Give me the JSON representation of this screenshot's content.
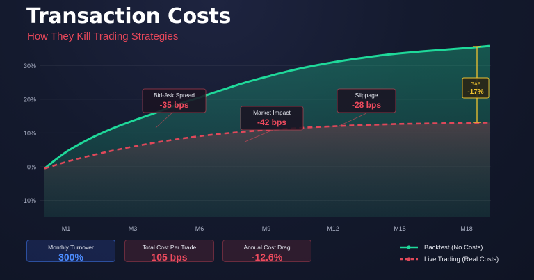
{
  "header": {
    "title": "Transaction Costs",
    "subtitle": "How They Kill Trading Strategies"
  },
  "stats": [
    {
      "label": "Monthly Turnover",
      "value": "300%"
    },
    {
      "label": "Total Cost Per Trade",
      "value": "105 bps"
    },
    {
      "label": "Annual Cost Drag",
      "value": "-12.6%"
    }
  ],
  "legend": {
    "backtest": "Backtest (No Costs)",
    "live": "Live Trading (Real Costs)"
  },
  "colors": {
    "backtest": "#1fd99a",
    "live": "#e0485a",
    "gap": "#f0c430",
    "accent_blue": "#4d8dff"
  },
  "chart_data": {
    "type": "area",
    "x_ticks": [
      "M1",
      "M3",
      "M6",
      "M9",
      "M12",
      "M15",
      "M18"
    ],
    "x": [
      0,
      1,
      2,
      3,
      4,
      5,
      6,
      7,
      8,
      9,
      10,
      11,
      12,
      13,
      14,
      15,
      16,
      17,
      18,
      19,
      20
    ],
    "ylim": [
      -15,
      37
    ],
    "y_ticks": [
      -10,
      0,
      10,
      20,
      30
    ],
    "y_tick_labels": [
      "-10%",
      "0%",
      "10%",
      "20%",
      "30%"
    ],
    "grid": true,
    "legend_position": "bottom-right",
    "series": [
      {
        "name": "Backtest (No Costs)",
        "style": "solid",
        "values": [
          -0.5,
          4.5,
          8.2,
          11.2,
          13.7,
          16,
          18.5,
          20.6,
          22.8,
          24.9,
          26.7,
          28.4,
          29.8,
          31,
          32,
          32.9,
          33.6,
          34.2,
          34.7,
          35.2,
          35.8
        ]
      },
      {
        "name": "Live Trading (Real Costs)",
        "style": "dashed",
        "values": [
          -0.5,
          1.5,
          3.2,
          4.7,
          6,
          7.2,
          8.2,
          9.1,
          9.8,
          10.4,
          10.9,
          11.3,
          11.7,
          12,
          12.3,
          12.5,
          12.7,
          12.8,
          12.9,
          13,
          13.1
        ]
      }
    ],
    "annotations": [
      {
        "title": "Bid-Ask Spread",
        "value": "-35 bps"
      },
      {
        "title": "Market Impact",
        "value": "-42 bps"
      },
      {
        "title": "Slippage",
        "value": "-28 bps"
      },
      {
        "title": "GAP",
        "value": "-17%"
      }
    ]
  }
}
